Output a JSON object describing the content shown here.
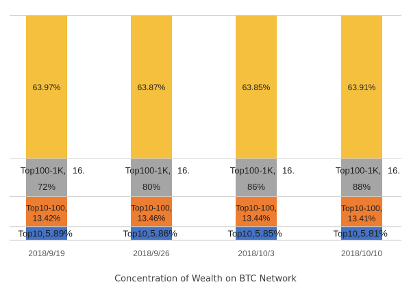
{
  "chart_data": {
    "type": "bar",
    "stacked": true,
    "normalized": true,
    "title": "Concentration of Wealth on BTC Network",
    "categories": [
      "2018/9/19",
      "2018/9/26",
      "2018/10/3",
      "2018/10/10"
    ],
    "series": [
      {
        "name": "Top10",
        "color": "#4472c4",
        "values": [
          5.89,
          5.86,
          5.85,
          5.81
        ],
        "labels": [
          "5.89%",
          "5.86%",
          "5.85%",
          "5.81%"
        ]
      },
      {
        "name": "Top10-100",
        "color": "#ed7d31",
        "values": [
          13.42,
          13.46,
          13.44,
          13.41
        ],
        "labels": [
          "13.42%",
          "13.46%",
          "13.44%",
          "13.41%"
        ]
      },
      {
        "name": "Top100-1K",
        "color": "#a5a5a5",
        "values": [
          16.72,
          16.8,
          16.86,
          16.88
        ],
        "labels_line1": [
          "16.",
          "16.",
          "16.",
          "16."
        ],
        "labels_line2": [
          "72%",
          "80%",
          "86%",
          "88%"
        ]
      },
      {
        "color": "#f4c03e",
        "values": [
          63.97,
          63.87,
          63.85,
          63.91
        ],
        "labels": [
          "63.97%",
          "63.87%",
          "63.85%",
          "63.91%"
        ]
      }
    ],
    "ylim": [
      0,
      100
    ],
    "grid": true,
    "legend": "none"
  }
}
